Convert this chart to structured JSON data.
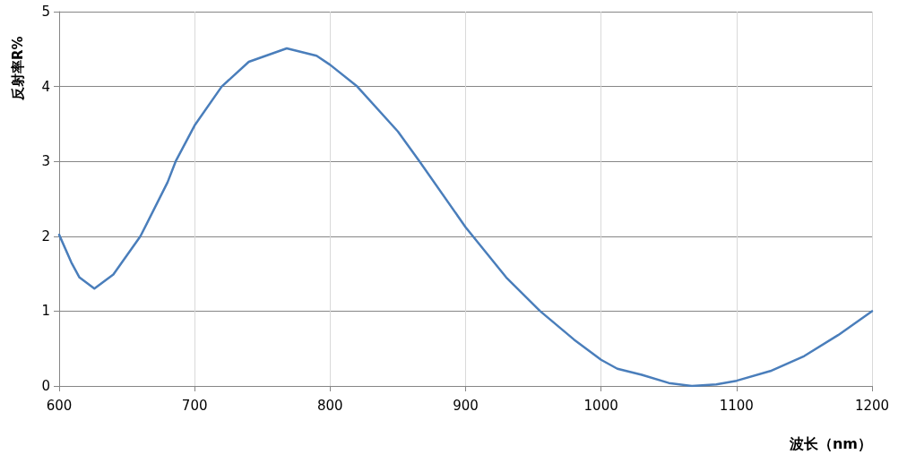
{
  "chart_data": {
    "type": "line",
    "xlabel": "波长（nm）",
    "ylabel": "反射率R%",
    "xlim": [
      600,
      1200
    ],
    "xticks": [
      600,
      700,
      800,
      900,
      1000,
      1100,
      1200
    ],
    "ylim": [
      0,
      5
    ],
    "yticks": [
      0,
      1,
      2,
      3,
      4,
      5
    ],
    "grid": true,
    "marker": "none",
    "line_style": "solid",
    "series": [
      {
        "color": "#4a7ebb",
        "x": [
          600,
          609,
          615,
          626,
          640,
          660,
          680,
          686,
          700,
          720,
          740,
          768,
          790,
          800,
          820,
          850,
          866,
          900,
          930,
          955,
          980,
          1000,
          1012,
          1030,
          1050,
          1067,
          1085,
          1100,
          1125,
          1150,
          1175,
          1200
        ],
        "values": [
          2.02,
          1.65,
          1.45,
          1.3,
          1.49,
          2.0,
          2.72,
          3.0,
          3.48,
          4.0,
          4.33,
          4.51,
          4.41,
          4.29,
          4.0,
          3.4,
          3.0,
          2.12,
          1.45,
          1.0,
          0.62,
          0.35,
          0.23,
          0.15,
          0.04,
          0.0,
          0.02,
          0.07,
          0.2,
          0.4,
          0.68,
          1.0
        ]
      }
    ]
  }
}
